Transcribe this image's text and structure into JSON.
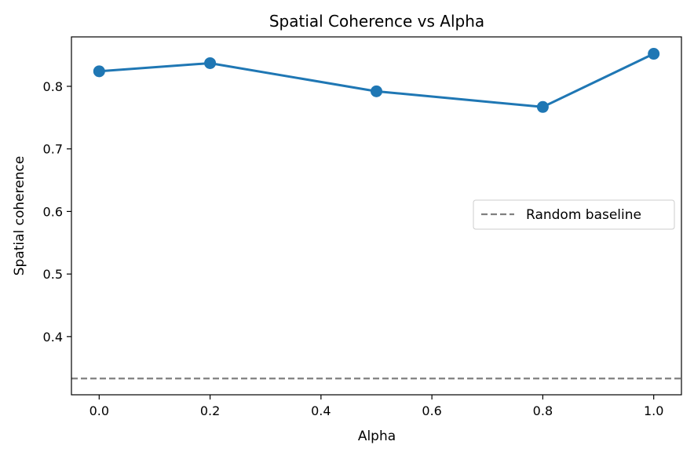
{
  "chart_data": {
    "type": "line",
    "title": "Spatial Coherence vs Alpha",
    "xlabel": "Alpha",
    "ylabel": "Spatial coherence",
    "xlim": [
      -0.05,
      1.05
    ],
    "ylim": [
      0.307,
      0.879
    ],
    "xticks": [
      0.0,
      0.2,
      0.4,
      0.6,
      0.8,
      1.0
    ],
    "xtick_labels": [
      "0.0",
      "0.2",
      "0.4",
      "0.6",
      "0.8",
      "1.0"
    ],
    "yticks": [
      0.4,
      0.5,
      0.6,
      0.7,
      0.8
    ],
    "ytick_labels": [
      "0.4",
      "0.5",
      "0.6",
      "0.7",
      "0.8"
    ],
    "grid": false,
    "legend_position": "center-right",
    "series": [
      {
        "x": [
          0.0,
          0.2,
          0.5,
          0.8,
          1.0
        ],
        "values": [
          0.824,
          0.837,
          0.792,
          0.767,
          0.852
        ],
        "color": "#1f77b4",
        "style": "solid",
        "marker": "circle"
      }
    ],
    "baselines": [
      {
        "name": "Random baseline",
        "y": 0.333,
        "color": "#808080",
        "style": "dashed"
      }
    ]
  }
}
